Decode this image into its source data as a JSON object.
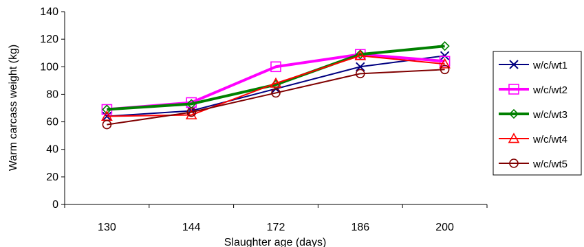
{
  "chart_data": {
    "type": "line",
    "title": "",
    "xlabel": "Slaughter age (days)",
    "ylabel": "Warm carcass weight (kg)",
    "categories": [
      "130",
      "144",
      "172",
      "186",
      "200"
    ],
    "ylim": [
      0,
      140
    ],
    "yticks": [
      0,
      20,
      40,
      60,
      80,
      100,
      120,
      140
    ],
    "grid": false,
    "legend_position": "right",
    "series": [
      {
        "name": "w/c/wt1",
        "values": [
          64,
          68,
          84,
          100,
          108
        ],
        "color": "#000080",
        "marker": "x"
      },
      {
        "name": "w/c/wt2",
        "values": [
          69,
          74,
          100,
          109,
          104
        ],
        "color": "#ff00ff",
        "marker": "square"
      },
      {
        "name": "w/c/wt3",
        "values": [
          69,
          73,
          87,
          109,
          115
        ],
        "color": "#008000",
        "marker": "diamond"
      },
      {
        "name": "w/c/wt4",
        "values": [
          64,
          65,
          88,
          108,
          102
        ],
        "color": "#ff0000",
        "marker": "triangle"
      },
      {
        "name": "w/c/wt5",
        "values": [
          58,
          67,
          81,
          95,
          98
        ],
        "color": "#800000",
        "marker": "circle"
      }
    ]
  }
}
